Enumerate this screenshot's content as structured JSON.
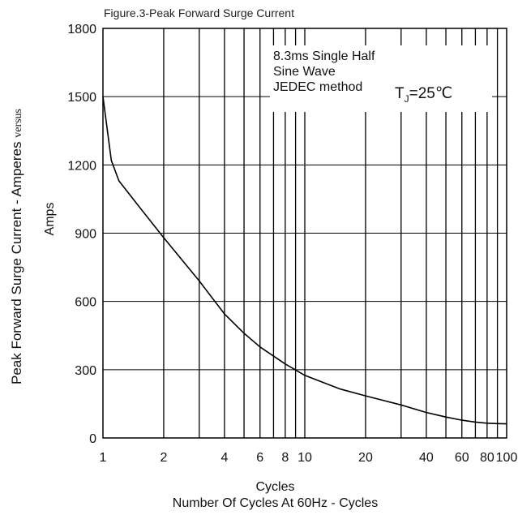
{
  "chart_data": {
    "type": "line",
    "title": "Figure.3-Peak Forward Surge Current",
    "ylabel_line1": "Peak Forward Surge Current - Amperes",
    "ylabel_versus": "versus",
    "ylabel_line2": "Amps",
    "xlabel_line1": "Cycles",
    "xlabel_line2": "Number Of Cycles At 60Hz - Cycles",
    "x_scale": "log",
    "xlim": [
      1,
      100
    ],
    "ylim": [
      0,
      1800
    ],
    "x_ticks": [
      1,
      2,
      4,
      6,
      8,
      10,
      20,
      40,
      60,
      80,
      100
    ],
    "x_tick_labels": [
      "1",
      "2",
      "4",
      "6",
      "8",
      "10",
      "20",
      "40",
      "60",
      "80",
      "100"
    ],
    "x_gridlines": [
      2,
      3,
      4,
      5,
      6,
      7,
      8,
      9,
      10,
      20,
      30,
      40,
      50,
      60,
      70,
      80,
      90
    ],
    "y_ticks": [
      0,
      300,
      600,
      900,
      1200,
      1500,
      1800
    ],
    "y_tick_labels": [
      "0",
      "300",
      "600",
      "900",
      "1200",
      "1500",
      "1800"
    ],
    "grid": true,
    "annotation": {
      "lines": [
        "8.3ms Single Half",
        "Sine Wave",
        "JEDEC method"
      ],
      "temp": "T",
      "temp_sub": "J",
      "temp_value": "=25℃"
    },
    "series": [
      {
        "values": [
          [
            1,
            1500
          ],
          [
            1.1,
            1220
          ],
          [
            1.2,
            1130
          ],
          [
            1.5,
            1020
          ],
          [
            2,
            880
          ],
          [
            3,
            690
          ],
          [
            4,
            545
          ],
          [
            5,
            460
          ],
          [
            6,
            400
          ],
          [
            8,
            325
          ],
          [
            10,
            275
          ],
          [
            15,
            215
          ],
          [
            20,
            185
          ],
          [
            30,
            145
          ],
          [
            40,
            112
          ],
          [
            50,
            92
          ],
          [
            60,
            78
          ],
          [
            70,
            70
          ],
          [
            80,
            65
          ],
          [
            90,
            63
          ],
          [
            100,
            62
          ]
        ]
      }
    ]
  }
}
